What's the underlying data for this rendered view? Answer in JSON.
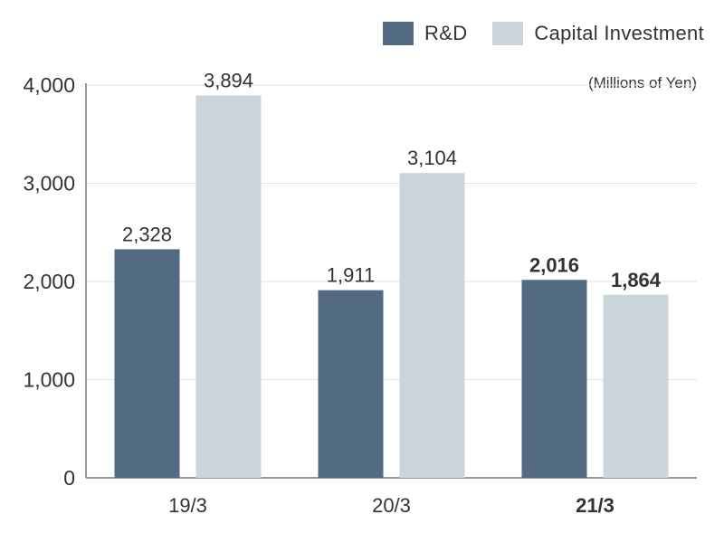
{
  "chart_data": {
    "type": "bar",
    "categories": [
      "19/3",
      "20/3",
      "21/3"
    ],
    "category_emphasis": [
      false,
      false,
      true
    ],
    "series": [
      {
        "name": "R&D",
        "values": [
          2328,
          1911,
          2016
        ],
        "color": "#526a82",
        "labels": [
          "2,328",
          "1,911",
          "2,016"
        ]
      },
      {
        "name": "Capital Investment",
        "values": [
          3894,
          3104,
          1864
        ],
        "color": "#cbd5dc",
        "labels": [
          "3,894",
          "3,104",
          "1,864"
        ]
      }
    ],
    "unit_note": "(Millions of Yen)",
    "ylim": [
      0,
      4000
    ],
    "yticks": [
      0,
      1000,
      2000,
      3000,
      4000
    ],
    "ytick_labels": [
      "0",
      "1,000",
      "2,000",
      "3,000",
      "4,000"
    ],
    "grid": true,
    "legend_position": "top-right"
  }
}
